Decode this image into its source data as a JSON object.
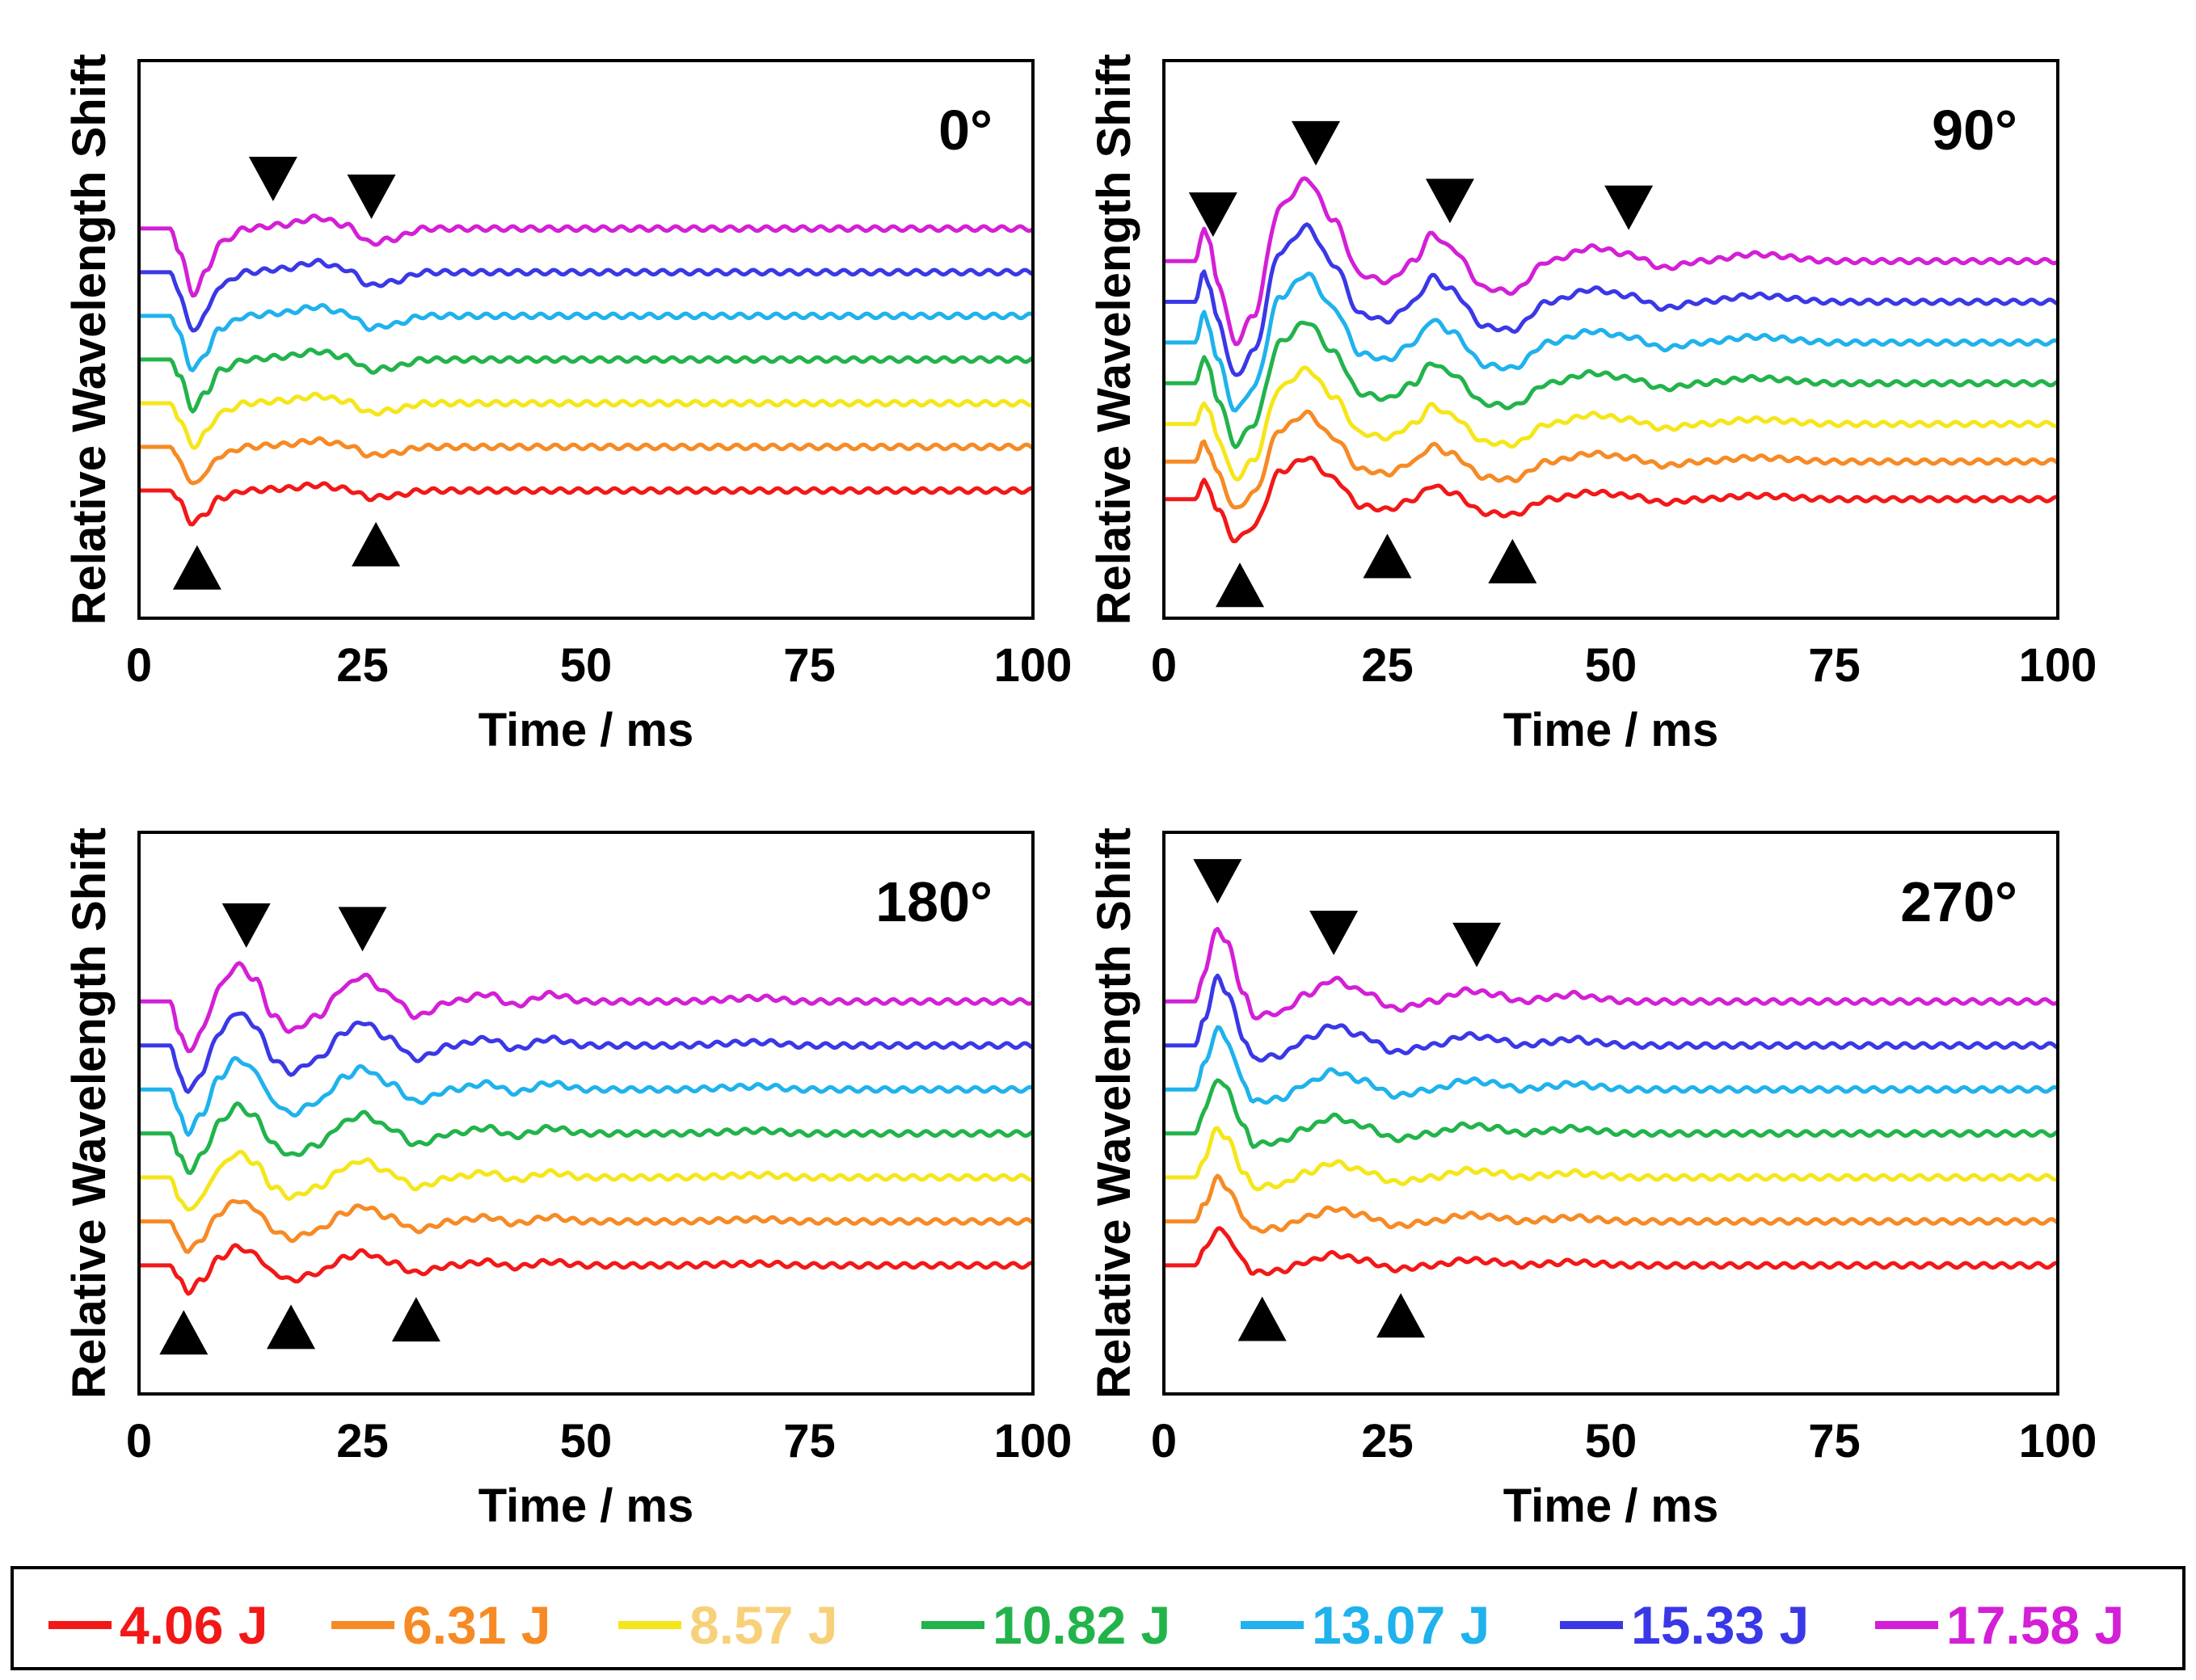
{
  "chart_data": {
    "type": "line",
    "series_energies": [
      {
        "name": "4.06 J",
        "color": "#f21818"
      },
      {
        "name": "6.31 J",
        "color": "#f68a25"
      },
      {
        "name": "8.57 J",
        "color": "#f5e61a",
        "label_color": "#f7d17a"
      },
      {
        "name": "10.82 J",
        "color": "#22b34b"
      },
      {
        "name": "13.07 J",
        "color": "#1fb2ec"
      },
      {
        "name": "15.33 J",
        "color": "#3a38e6"
      },
      {
        "name": "17.58 J",
        "color": "#d31fd6"
      }
    ],
    "panels": [
      {
        "angle": "0°",
        "xlabel": "Time / ms",
        "ylabel": "Relative Wavelength Shift",
        "xlim": [
          0,
          100
        ],
        "xticks": [
          "0",
          "25",
          "50",
          "75",
          "100"
        ],
        "ylim": [
          -1.9,
          6.4
        ],
        "offsets": [
          0,
          0.65,
          1.3,
          1.95,
          2.6,
          3.25,
          3.9
        ],
        "curve": [
          [
            0,
            0
          ],
          [
            3.5,
            0
          ],
          [
            4.5,
            -0.3
          ],
          [
            6,
            -0.9
          ],
          [
            7.5,
            -0.6
          ],
          [
            9,
            -0.2
          ],
          [
            12,
            0
          ],
          [
            16,
            0.05
          ],
          [
            20,
            0.15
          ],
          [
            23,
            0.05
          ],
          [
            26,
            -0.2
          ],
          [
            28,
            -0.15
          ],
          [
            32,
            0
          ],
          [
            40,
            0
          ],
          [
            60,
            0
          ],
          [
            80,
            0
          ],
          [
            100,
            0
          ]
        ],
        "up_markers": [
          6.5,
          26.5
        ],
        "down_markers": [
          15,
          26
        ]
      },
      {
        "angle": "90°",
        "xlabel": "Time / ms",
        "ylabel": "Relative Wavelength Shift",
        "xlim": [
          0,
          100
        ],
        "xticks": [
          "0",
          "25",
          "50",
          "75",
          "100"
        ],
        "ylim": [
          -1.9,
          7.0
        ],
        "offsets": [
          0,
          0.6,
          1.2,
          1.85,
          2.5,
          3.15,
          3.8
        ],
        "curve": [
          [
            0,
            0
          ],
          [
            3.5,
            0
          ],
          [
            4.5,
            0.5
          ],
          [
            5,
            0.3
          ],
          [
            6,
            -0.3
          ],
          [
            8,
            -1.2
          ],
          [
            10,
            -0.8
          ],
          [
            13,
            0.8
          ],
          [
            16,
            1.2
          ],
          [
            19,
            0.6
          ],
          [
            22,
            -0.2
          ],
          [
            25,
            -0.3
          ],
          [
            28,
            0
          ],
          [
            30,
            0.4
          ],
          [
            32,
            0.2
          ],
          [
            36,
            -0.4
          ],
          [
            39,
            -0.45
          ],
          [
            43,
            0
          ],
          [
            48,
            0.2
          ],
          [
            52,
            0.1
          ],
          [
            56,
            -0.1
          ],
          [
            60,
            0
          ],
          [
            66,
            0.1
          ],
          [
            75,
            0
          ],
          [
            100,
            0
          ]
        ],
        "up_markers": [
          8.5,
          25,
          39
        ],
        "down_markers": [
          5.5,
          17,
          32,
          52
        ]
      },
      {
        "angle": "180°",
        "xlabel": "Time / ms",
        "ylabel": "Relative Wavelength Shift",
        "xlim": [
          0,
          100
        ],
        "xticks": [
          "0",
          "25",
          "50",
          "75",
          "100"
        ],
        "ylim": [
          -1.9,
          6.4
        ],
        "offsets": [
          0,
          0.65,
          1.3,
          1.95,
          2.6,
          3.25,
          3.9
        ],
        "curve": [
          [
            0,
            0
          ],
          [
            3.5,
            0
          ],
          [
            4.5,
            -0.4
          ],
          [
            5.5,
            -0.7
          ],
          [
            7,
            -0.4
          ],
          [
            9,
            0.2
          ],
          [
            11,
            0.5
          ],
          [
            13,
            0.3
          ],
          [
            15,
            -0.2
          ],
          [
            17,
            -0.4
          ],
          [
            20,
            -0.2
          ],
          [
            23,
            0.2
          ],
          [
            25,
            0.35
          ],
          [
            28,
            0.1
          ],
          [
            31,
            -0.2
          ],
          [
            35,
            0
          ],
          [
            39,
            0.1
          ],
          [
            42,
            -0.05
          ],
          [
            46,
            0.1
          ],
          [
            50,
            0
          ],
          [
            60,
            0
          ],
          [
            70,
            0.05
          ],
          [
            74,
            0
          ],
          [
            100,
            0
          ]
        ],
        "up_markers": [
          5,
          17,
          31
        ],
        "down_markers": [
          12,
          25
        ]
      },
      {
        "angle": "270°",
        "xlabel": "Time / ms",
        "ylabel": "Relative Wavelength Shift",
        "xlim": [
          0,
          100
        ],
        "xticks": [
          "0",
          "25",
          "50",
          "75",
          "100"
        ],
        "ylim": [
          -1.9,
          6.4
        ],
        "offsets": [
          0,
          0.65,
          1.3,
          1.95,
          2.6,
          3.25,
          3.9
        ],
        "curve": [
          [
            0,
            0
          ],
          [
            3.5,
            0
          ],
          [
            4.5,
            0.4
          ],
          [
            6,
            1.0
          ],
          [
            7,
            0.8
          ],
          [
            9,
            0.1
          ],
          [
            10,
            -0.2
          ],
          [
            13,
            -0.15
          ],
          [
            16,
            0.1
          ],
          [
            19,
            0.3
          ],
          [
            22,
            0.15
          ],
          [
            26,
            -0.1
          ],
          [
            30,
            0
          ],
          [
            34,
            0.15
          ],
          [
            37,
            0.1
          ],
          [
            40,
            0
          ],
          [
            43,
            0.05
          ],
          [
            46,
            0.1
          ],
          [
            48,
            0.05
          ],
          [
            52,
            0
          ],
          [
            100,
            0
          ]
        ],
        "up_markers": [
          11,
          26.5
        ],
        "down_markers": [
          6,
          19,
          35
        ]
      }
    ]
  }
}
